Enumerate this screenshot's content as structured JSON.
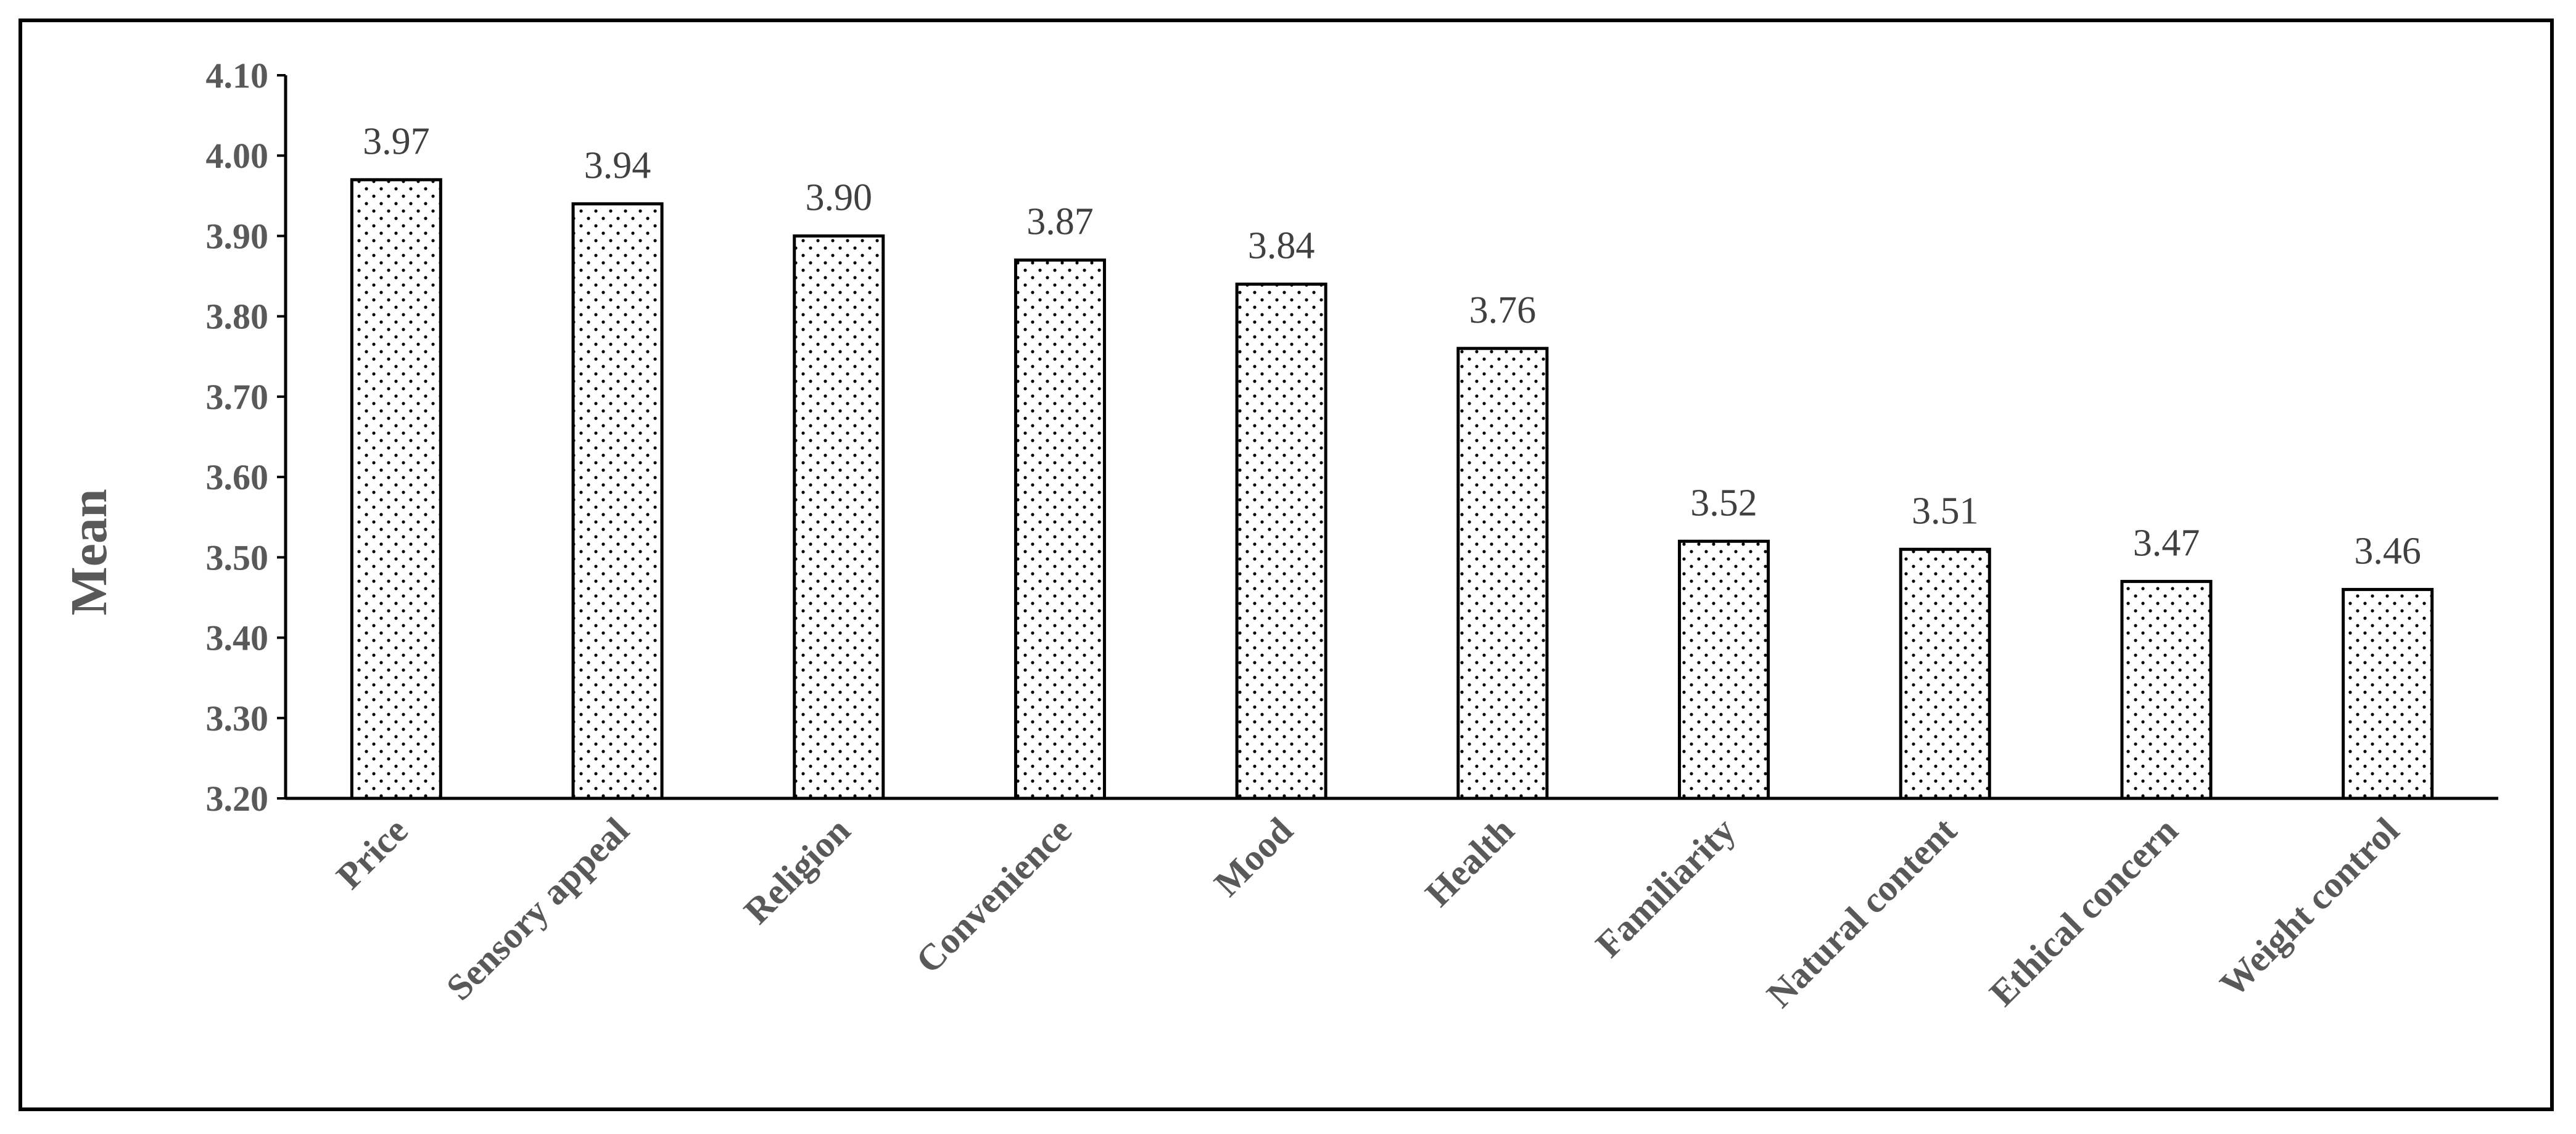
{
  "chart_data": {
    "type": "bar",
    "ylabel": "Mean",
    "xlabel": "",
    "ylim": [
      3.2,
      4.1
    ],
    "ytick_step": 0.1,
    "ytick_labels": [
      "3.20",
      "3.30",
      "3.40",
      "3.50",
      "3.60",
      "3.70",
      "3.80",
      "3.90",
      "4.00",
      "4.10"
    ],
    "categories": [
      "Price",
      "Sensory appeal",
      "Religion",
      "Convenience",
      "Mood",
      "Health",
      "Familiarity",
      "Natural content",
      "Ethical concern",
      "Weight control"
    ],
    "values": [
      3.97,
      3.94,
      3.9,
      3.87,
      3.84,
      3.76,
      3.52,
      3.51,
      3.47,
      3.46
    ],
    "data_labels": [
      "3.97",
      "3.94",
      "3.90",
      "3.87",
      "3.84",
      "3.76",
      "3.52",
      "3.51",
      "3.47",
      "3.46"
    ],
    "grid": false,
    "legend": "none",
    "bar_fill": "dotted pattern",
    "colors": {
      "bar_outline": "#000000",
      "dots": "#000000",
      "text": "#595959"
    }
  }
}
